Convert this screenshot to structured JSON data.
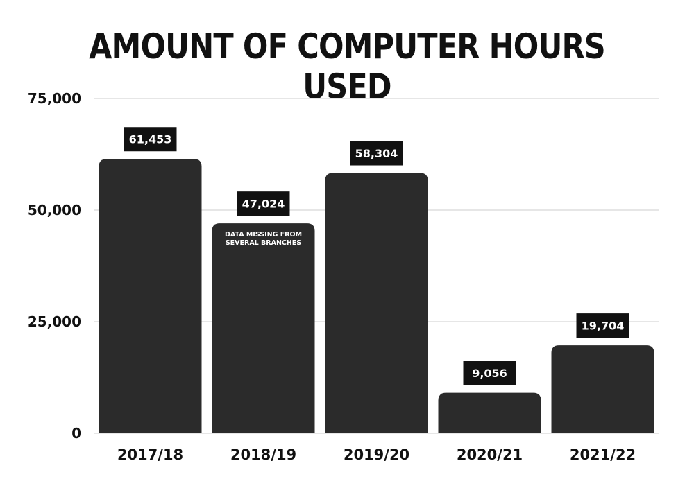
{
  "chart_data": {
    "type": "bar",
    "title": "AMOUNT OF COMPUTER HOURS USED",
    "categories": [
      "2017/18",
      "2018/19",
      "2019/20",
      "2020/21",
      "2021/22"
    ],
    "values": [
      61453,
      47024,
      58304,
      9056,
      19704
    ],
    "value_labels": [
      "61,453",
      "47,024",
      "58,304",
      "9,056",
      "19,704"
    ],
    "y_ticks": [
      {
        "value": 0,
        "label": "0"
      },
      {
        "value": 25000,
        "label": "25,000"
      },
      {
        "value": 50000,
        "label": "50,000"
      },
      {
        "value": 75000,
        "label": "75,000"
      }
    ],
    "ylim": [
      0,
      75000
    ],
    "grid": true,
    "annotations": [
      {
        "category": "2018/19",
        "lines": [
          "DATA MISSING FROM",
          "SEVERAL BRANCHES"
        ]
      }
    ],
    "colors": {
      "bar": "#2b2b2b",
      "label_box": "#111111",
      "label_text": "#ffffff",
      "grid": "#d6d6d6",
      "text": "#111111"
    }
  }
}
